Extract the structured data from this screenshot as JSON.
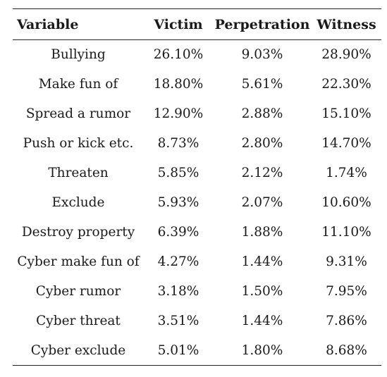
{
  "table": {
    "headers": {
      "variable": "Variable",
      "victim": "Victim",
      "perpetration": "Perpetration",
      "witness": "Witness"
    },
    "rows": [
      {
        "variable": "Bullying",
        "victim": "26.10%",
        "perpetration": "9.03%",
        "witness": "28.90%"
      },
      {
        "variable": "Make fun of",
        "victim": "18.80%",
        "perpetration": "5.61%",
        "witness": "22.30%"
      },
      {
        "variable": "Spread a rumor",
        "victim": "12.90%",
        "perpetration": "2.88%",
        "witness": "15.10%"
      },
      {
        "variable": "Push or kick etc.",
        "victim": "8.73%",
        "perpetration": "2.80%",
        "witness": "14.70%"
      },
      {
        "variable": "Threaten",
        "victim": "5.85%",
        "perpetration": "2.12%",
        "witness": "1.74%"
      },
      {
        "variable": "Exclude",
        "victim": "5.93%",
        "perpetration": "2.07%",
        "witness": "10.60%"
      },
      {
        "variable": "Destroy property",
        "victim": "6.39%",
        "perpetration": "1.88%",
        "witness": "11.10%"
      },
      {
        "variable": "Cyber make fun of",
        "victim": "4.27%",
        "perpetration": "1.44%",
        "witness": "9.31%"
      },
      {
        "variable": "Cyber rumor",
        "victim": "3.18%",
        "perpetration": "1.50%",
        "witness": "7.95%"
      },
      {
        "variable": "Cyber threat",
        "victim": "3.51%",
        "perpetration": "1.44%",
        "witness": "7.86%"
      },
      {
        "variable": "Cyber exclude",
        "victim": "5.01%",
        "perpetration": "1.80%",
        "witness": "8.68%"
      }
    ]
  }
}
